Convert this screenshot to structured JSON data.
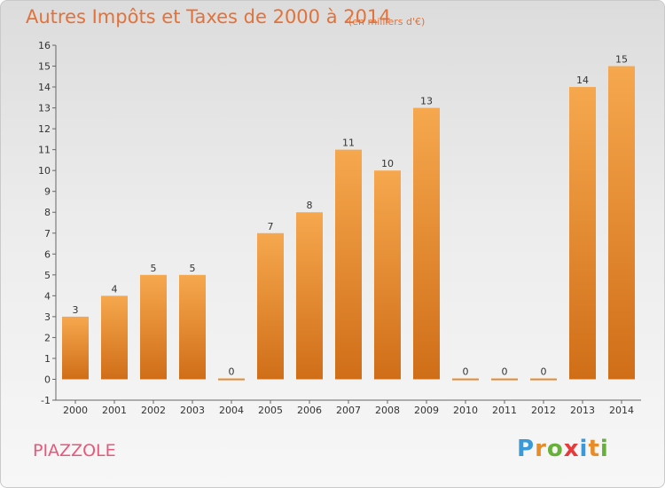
{
  "header": {
    "title": "Autres Impôts et Taxes de 2000 à 2014",
    "unit": "(en milliers d'€)"
  },
  "footer": {
    "commune": "PIAZZOLE",
    "logo": "Proxiti",
    "logo_colors": [
      "#3a9ad9",
      "#e88c2a",
      "#67b03a",
      "#e83a3a",
      "#3a9ad9",
      "#e88c2a",
      "#67b03a"
    ]
  },
  "colors": {
    "bar_top": "#f6a84e",
    "bar_bottom": "#d06e18",
    "axis": "#666666",
    "grid": "#bbbbbb",
    "label": "#333333"
  },
  "chart_data": {
    "type": "bar",
    "categories": [
      "2000",
      "2001",
      "2002",
      "2003",
      "2004",
      "2005",
      "2006",
      "2007",
      "2008",
      "2009",
      "2010",
      "2011",
      "2012",
      "2013",
      "2014"
    ],
    "values": [
      3,
      4,
      5,
      5,
      0,
      7,
      8,
      11,
      10,
      13,
      0,
      0,
      0,
      14,
      15
    ],
    "data_labels": [
      "3",
      "4",
      "5",
      "5",
      "0",
      "7",
      "8",
      "11",
      "10",
      "13",
      "0",
      "0",
      "0",
      "14",
      "15"
    ],
    "ylim": [
      -1,
      16
    ],
    "yticks": [
      "-1",
      "0",
      "1",
      "2",
      "3",
      "4",
      "5",
      "6",
      "7",
      "8",
      "9",
      "10",
      "11",
      "12",
      "13",
      "14",
      "15",
      "16"
    ],
    "grid": false,
    "legend": "none"
  }
}
